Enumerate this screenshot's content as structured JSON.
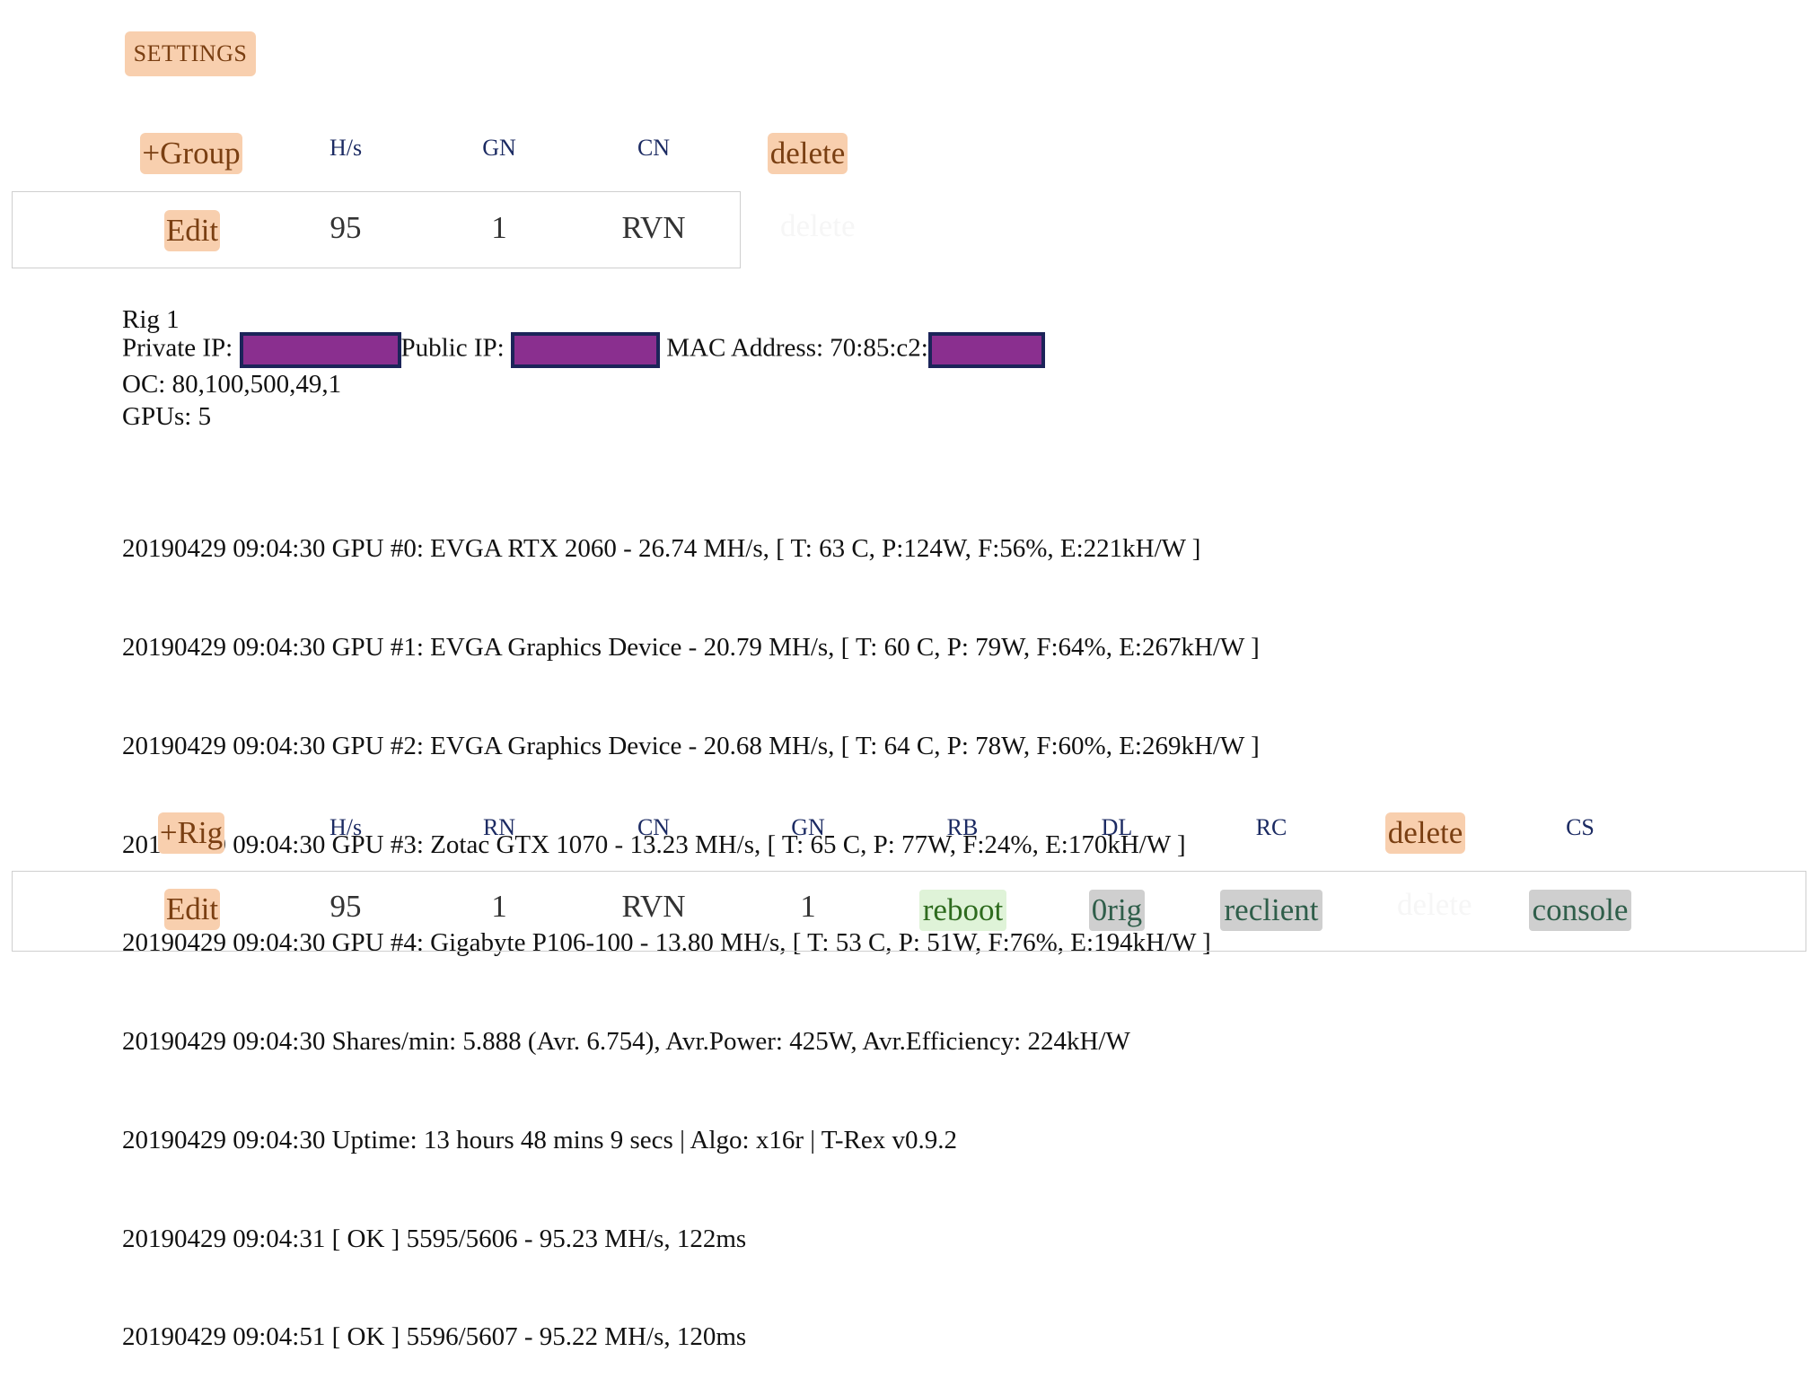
{
  "settings_label": "SETTINGS",
  "group": {
    "add_label": "+Group",
    "headers": {
      "hs": "H/s",
      "gn": "GN",
      "cn": "CN"
    },
    "delete_label": "delete",
    "row": {
      "edit_label": "Edit",
      "hs": "95",
      "gn": "1",
      "cn": "RVN"
    }
  },
  "rig_info": {
    "name": "Rig 1",
    "private_ip_label": "Private IP:",
    "public_ip_label": "Public IP:",
    "mac_label": "MAC Address: 70:85:c2:",
    "oc": "OC: 80,100,500,49,1",
    "gpus": "GPUs: 5"
  },
  "log_lines": [
    "20190429 09:04:30 GPU #0: EVGA RTX 2060 - 26.74 MH/s, [ T: 63 C, P:124W, F:56%, E:221kH/W ]",
    "20190429 09:04:30 GPU #1: EVGA Graphics Device - 20.79 MH/s, [ T: 60 C, P: 79W, F:64%, E:267kH/W ]",
    "20190429 09:04:30 GPU #2: EVGA Graphics Device - 20.68 MH/s, [ T: 64 C, P: 78W, F:60%, E:269kH/W ]",
    "20190429 09:04:30 GPU #3: Zotac GTX 1070 - 13.23 MH/s, [ T: 65 C, P: 77W, F:24%, E:170kH/W ]",
    "20190429 09:04:30 GPU #4: Gigabyte P106-100 - 13.80 MH/s, [ T: 53 C, P: 51W, F:76%, E:194kH/W ]",
    "20190429 09:04:30 Shares/min: 5.888 (Avr. 6.754), Avr.Power: 425W, Avr.Efficiency: 224kH/W",
    "20190429 09:04:30 Uptime: 13 hours 48 mins 9 secs | Algo: x16r | T-Rex v0.9.2",
    "20190429 09:04:31 [ OK ] 5595/5606 - 95.23 MH/s, 122ms",
    "20190429 09:04:51 [ OK ] 5596/5607 - 95.22 MH/s, 120ms"
  ],
  "rig": {
    "add_label": "+Rig",
    "headers": {
      "hs": "H/s",
      "rn": "RN",
      "cn": "CN",
      "gn": "GN",
      "rb": "RB",
      "dl": "DL",
      "rc": "RC",
      "cs": "CS"
    },
    "delete_label": "delete",
    "row": {
      "edit_label": "Edit",
      "hs": "95",
      "rn": "1",
      "cn": "RVN",
      "gn": "1",
      "reboot_label": "reboot",
      "dl_label": "0rig",
      "reclient_label": "reclient",
      "console_label": "console"
    }
  },
  "colors": {
    "button_bg": "#f8cfae",
    "button_text": "#7a3f12",
    "header_text": "#1c2b63",
    "redaction_fill": "#8a2f8f",
    "redaction_border": "#1c2459",
    "reboot_bg": "#dff3d8",
    "grey_button_bg": "#cfcfcf"
  }
}
